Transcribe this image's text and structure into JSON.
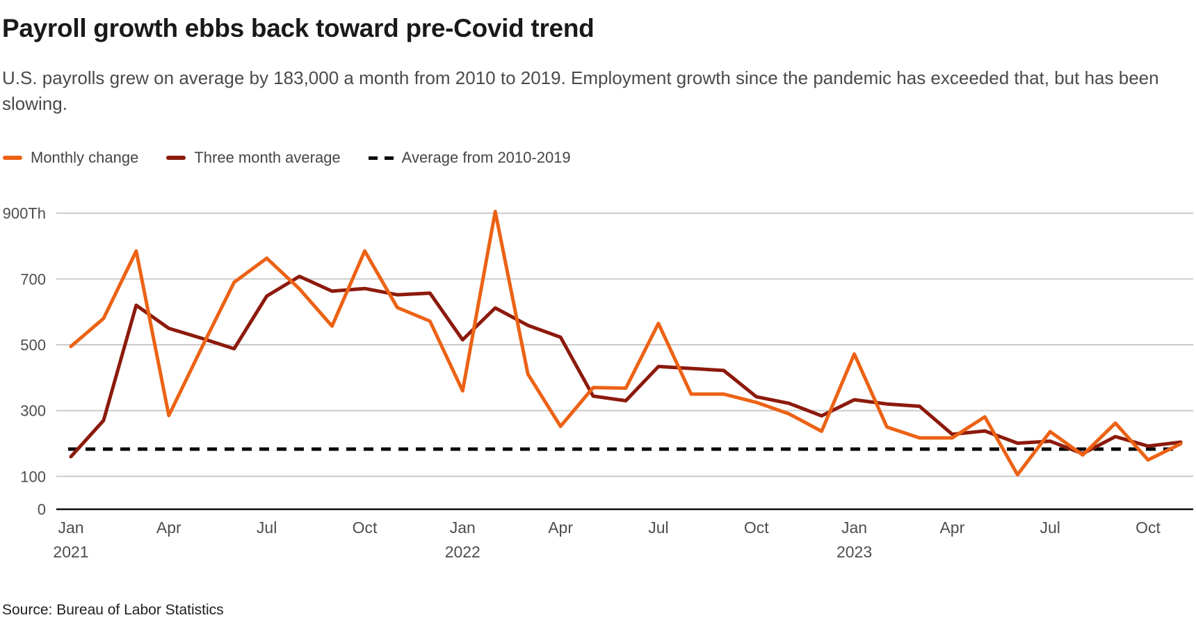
{
  "header": {
    "title": "Payroll growth ebbs back toward pre-Covid trend",
    "subtitle": "U.S. payrolls grew on average by 183,000 a month from 2010 to 2019. Employment growth since the pandemic has exceeded that, but has been slowing."
  },
  "legend": [
    {
      "label": "Monthly change",
      "color": "#EC6215",
      "style": "solid"
    },
    {
      "label": "Three month average",
      "color": "#8C1A0C",
      "style": "solid"
    },
    {
      "label": "Average from 2010-2019",
      "color": "#0a0a0a",
      "style": "dashed"
    }
  ],
  "source": "Source: Bureau of Labor Statistics",
  "colors": {
    "monthly_change": "#EC6215",
    "three_month_average": "#8C1A0C",
    "average_line": "#0a0a0a",
    "gridline": "#cbcbcb",
    "axis_line": "#1a1a1a",
    "tick_label": "#4d4d4d"
  },
  "chart_data": {
    "type": "line",
    "unit": "thousands of jobs per month",
    "x": [
      "Jan 2021",
      "Feb 2021",
      "Mar 2021",
      "Apr 2021",
      "May 2021",
      "Jun 2021",
      "Jul 2021",
      "Aug 2021",
      "Sep 2021",
      "Oct 2021",
      "Nov 2021",
      "Dec 2021",
      "Jan 2022",
      "Feb 2022",
      "Mar 2022",
      "Apr 2022",
      "May 2022",
      "Jun 2022",
      "Jul 2022",
      "Aug 2022",
      "Sep 2022",
      "Oct 2022",
      "Nov 2022",
      "Dec 2022",
      "Jan 2023",
      "Feb 2023",
      "Mar 2023",
      "Apr 2023",
      "May 2023",
      "Jun 2023",
      "Jul 2023",
      "Aug 2023",
      "Sep 2023",
      "Oct 2023",
      "Nov 2023"
    ],
    "series": [
      {
        "name": "Monthly change",
        "color": "#EC6215",
        "values": [
          495,
          580,
          785,
          285,
          490,
          690,
          763,
          670,
          557,
          785,
          613,
          572,
          360,
          905,
          411,
          252,
          370,
          368,
          565,
          350,
          350,
          325,
          290,
          237,
          472,
          250,
          217,
          217,
          281,
          105,
          236,
          165,
          262,
          150,
          199
        ]
      },
      {
        "name": "Three month average",
        "color": "#8C1A0C",
        "values": [
          160,
          270,
          620,
          550,
          520,
          488,
          648,
          708,
          663,
          671,
          652,
          657,
          515,
          612,
          559,
          523,
          344,
          330,
          434,
          428,
          422,
          342,
          322,
          284,
          333,
          320,
          313,
          228,
          238,
          201,
          207,
          169,
          221,
          192,
          204
        ]
      }
    ],
    "average_line": {
      "label": "Average from 2010-2019",
      "value": 183
    },
    "y_ticks": [
      {
        "value": 900,
        "label": "900Th"
      },
      {
        "value": 700,
        "label": "700"
      },
      {
        "value": 500,
        "label": "500"
      },
      {
        "value": 300,
        "label": "300"
      },
      {
        "value": 100,
        "label": "100"
      },
      {
        "value": 0,
        "label": "0"
      }
    ],
    "x_ticks": [
      {
        "month_index": 0,
        "label": "Jan",
        "year": "2021"
      },
      {
        "month_index": 3,
        "label": "Apr",
        "year": ""
      },
      {
        "month_index": 6,
        "label": "Jul",
        "year": ""
      },
      {
        "month_index": 9,
        "label": "Oct",
        "year": ""
      },
      {
        "month_index": 12,
        "label": "Jan",
        "year": "2022"
      },
      {
        "month_index": 15,
        "label": "Apr",
        "year": ""
      },
      {
        "month_index": 18,
        "label": "Jul",
        "year": ""
      },
      {
        "month_index": 21,
        "label": "Oct",
        "year": ""
      },
      {
        "month_index": 24,
        "label": "Jan",
        "year": "2023"
      },
      {
        "month_index": 27,
        "label": "Apr",
        "year": ""
      },
      {
        "month_index": 30,
        "label": "Jul",
        "year": ""
      },
      {
        "month_index": 33,
        "label": "Oct",
        "year": ""
      }
    ],
    "ylim": [
      0,
      950
    ],
    "grid": "horizontal"
  }
}
